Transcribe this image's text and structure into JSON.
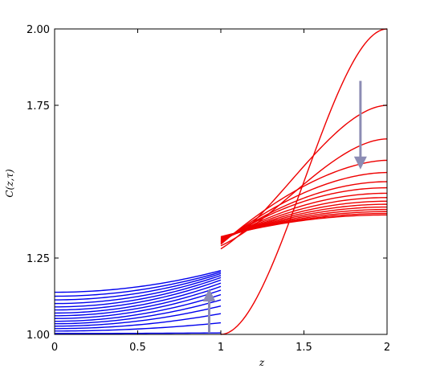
{
  "chart_data": {
    "type": "line",
    "xlabel": "z",
    "ylabel": "C(z,τ)",
    "xlim": [
      0,
      2
    ],
    "ylim": [
      1.0,
      2.0
    ],
    "xticks": [
      {
        "value": 0,
        "label": "0"
      },
      {
        "value": 0.5,
        "label": "0.5"
      },
      {
        "value": 1,
        "label": "1"
      },
      {
        "value": 1.5,
        "label": "1.5"
      },
      {
        "value": 2,
        "label": "2"
      }
    ],
    "yticks": [
      {
        "value": 1.0,
        "label": "1.00"
      },
      {
        "value": 1.25,
        "label": "1.25"
      },
      {
        "value": 1.75,
        "label": "1.75"
      },
      {
        "value": 2.0,
        "label": "2.00"
      }
    ],
    "grid": false,
    "colors": {
      "left_region": "#0000ee",
      "right_region": "#ee0000",
      "arrow": "#8c8cb4"
    },
    "left_region": {
      "x_range": [
        0,
        1
      ],
      "series": [
        {
          "y0": 1.003,
          "y1": 1.005
        },
        {
          "y0": 1.011,
          "y1": 1.038
        },
        {
          "y0": 1.019,
          "y1": 1.068
        },
        {
          "y0": 1.027,
          "y1": 1.093
        },
        {
          "y0": 1.035,
          "y1": 1.113
        },
        {
          "y0": 1.043,
          "y1": 1.13
        },
        {
          "y0": 1.052,
          "y1": 1.145
        },
        {
          "y0": 1.061,
          "y1": 1.157
        },
        {
          "y0": 1.07,
          "y1": 1.168
        },
        {
          "y0": 1.08,
          "y1": 1.178
        },
        {
          "y0": 1.09,
          "y1": 1.186
        },
        {
          "y0": 1.101,
          "y1": 1.193
        },
        {
          "y0": 1.113,
          "y1": 1.199
        },
        {
          "y0": 1.125,
          "y1": 1.204
        },
        {
          "y0": 1.138,
          "y1": 1.209
        }
      ]
    },
    "right_region": {
      "x_range": [
        1,
        2
      ],
      "series": [
        {
          "y1": 1.0,
          "y2": 2.0
        },
        {
          "y1": 1.28,
          "y2": 1.75
        },
        {
          "y1": 1.29,
          "y2": 1.64
        },
        {
          "y1": 1.295,
          "y2": 1.57
        },
        {
          "y1": 1.298,
          "y2": 1.53
        },
        {
          "y1": 1.3,
          "y2": 1.5
        },
        {
          "y1": 1.302,
          "y2": 1.48
        },
        {
          "y1": 1.304,
          "y2": 1.462
        },
        {
          "y1": 1.306,
          "y2": 1.448
        },
        {
          "y1": 1.308,
          "y2": 1.436
        },
        {
          "y1": 1.31,
          "y2": 1.426
        },
        {
          "y1": 1.312,
          "y2": 1.417
        },
        {
          "y1": 1.314,
          "y2": 1.409
        },
        {
          "y1": 1.316,
          "y2": 1.402
        },
        {
          "y1": 1.318,
          "y2": 1.396
        },
        {
          "y1": 1.32,
          "y2": 1.391
        }
      ]
    },
    "arrows": [
      {
        "x": 0.93,
        "y_from": 1.005,
        "y_to": 1.15
      },
      {
        "x": 1.84,
        "y_from": 1.83,
        "y_to": 1.54
      }
    ]
  }
}
